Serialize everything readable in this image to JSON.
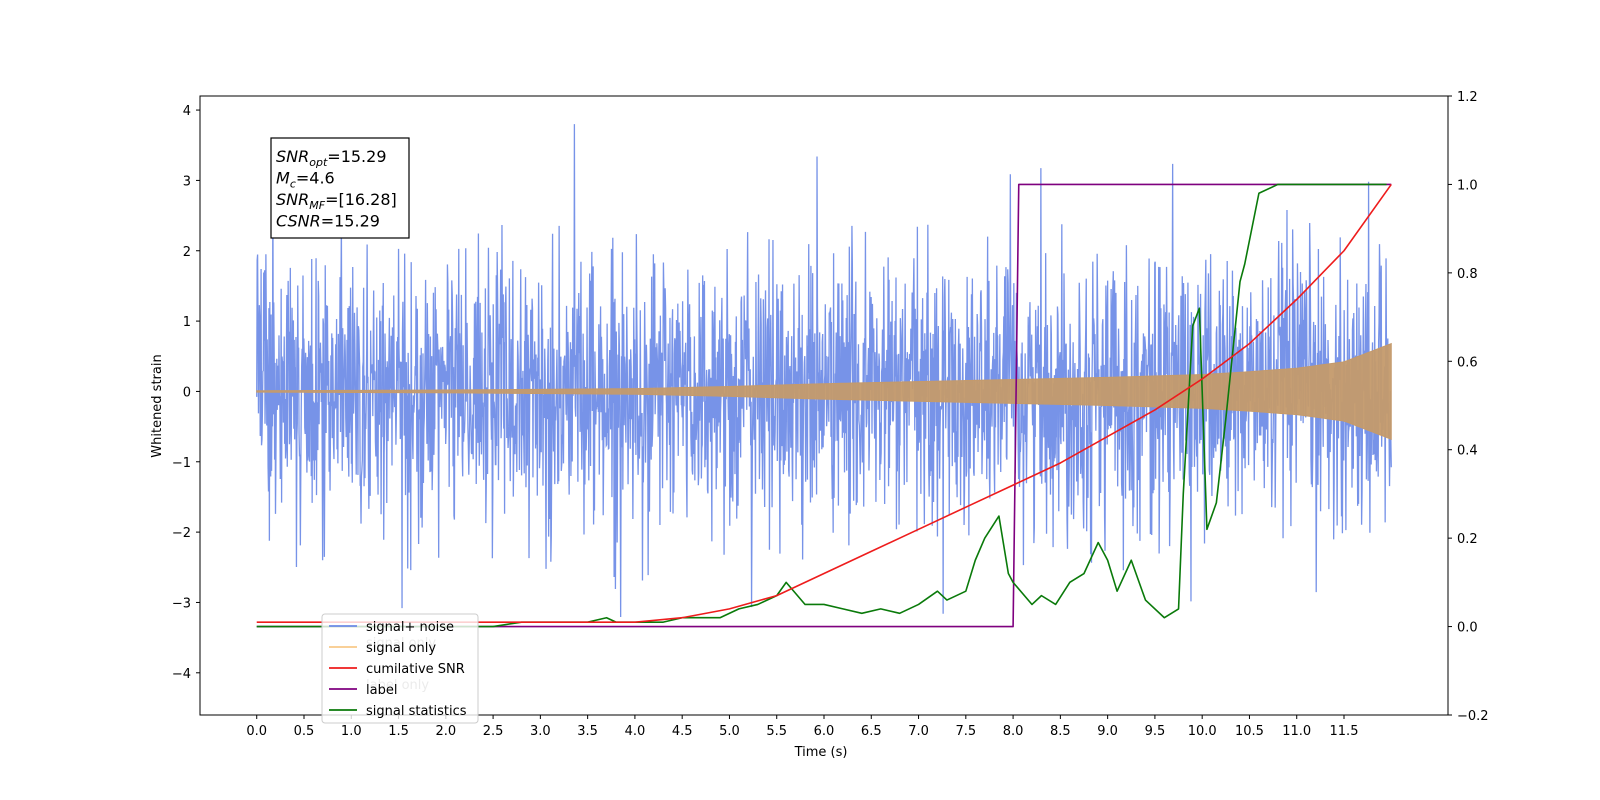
{
  "chart_data": {
    "type": "line",
    "xlabel": "Time (s)",
    "ylabel": "Whitened strain",
    "xlim": [
      -0.6,
      12.6
    ],
    "ylim": [
      -4.6,
      4.2
    ],
    "ylim_right": [
      -0.2,
      1.2
    ],
    "x_ticks": [
      "0.0",
      "0.5",
      "1.0",
      "1.5",
      "2.0",
      "2.5",
      "3.0",
      "3.5",
      "4.0",
      "4.5",
      "5.0",
      "5.5",
      "6.0",
      "6.5",
      "7.0",
      "7.5",
      "8.0",
      "8.5",
      "9.0",
      "9.5",
      "10.0",
      "10.5",
      "11.0",
      "11.5"
    ],
    "y_ticks_left": [
      "4",
      "3",
      "2",
      "1",
      "0",
      "−1",
      "−2",
      "−3",
      "−4"
    ],
    "y_ticks_right": [
      "1.2",
      "1.0",
      "0.8",
      "0.6",
      "0.4",
      "0.2",
      "0.0",
      "−0.2"
    ],
    "annotation": {
      "lines": [
        {
          "main": "SNR",
          "sub": "opt",
          "value": "=15.29"
        },
        {
          "main": "M",
          "sub": "c",
          "value": "=4.6"
        },
        {
          "main": "SNR",
          "sub": "MF",
          "value": "=[16.28]"
        },
        {
          "main": "CSNR",
          "sub": "",
          "value": "=15.29"
        }
      ]
    },
    "legend": {
      "position": "lower-left",
      "entries": [
        "signal+ noise",
        "signal only",
        "cumilative SNR",
        "label",
        "signal statistics"
      ],
      "ghost_labels": [
        "signal only",
        "label only"
      ]
    },
    "series": [
      {
        "name": "signal+ noise",
        "axis": "left",
        "color": "#6b8ae6",
        "kind": "noise",
        "x_range": [
          0.0,
          12.0
        ],
        "noise_std": 0.95,
        "noise_clip": 3.8
      },
      {
        "name": "signal only",
        "axis": "left",
        "color": "#c49a6c",
        "kind": "chirp_envelope",
        "x": [
          0.0,
          2.0,
          4.0,
          5.0,
          6.0,
          7.0,
          8.0,
          9.0,
          10.0,
          10.5,
          11.0,
          11.5,
          12.0
        ],
        "amplitude": [
          0.01,
          0.02,
          0.04,
          0.07,
          0.11,
          0.14,
          0.17,
          0.2,
          0.24,
          0.28,
          0.33,
          0.42,
          0.68
        ]
      },
      {
        "name": "cumilative SNR",
        "axis": "right",
        "color": "#ee1c1c",
        "x": [
          0.0,
          4.0,
          4.5,
          5.0,
          5.5,
          6.0,
          6.5,
          7.0,
          7.5,
          8.0,
          8.5,
          9.0,
          9.5,
          10.0,
          10.5,
          11.0,
          11.5,
          12.0
        ],
        "y": [
          0.01,
          0.01,
          0.02,
          0.04,
          0.07,
          0.12,
          0.17,
          0.22,
          0.27,
          0.32,
          0.37,
          0.43,
          0.49,
          0.56,
          0.64,
          0.74,
          0.85,
          1.0
        ]
      },
      {
        "name": "label",
        "axis": "right",
        "color": "#7f007f",
        "x": [
          0.0,
          8.0,
          8.06,
          12.0
        ],
        "y": [
          0.0,
          0.0,
          1.0,
          1.0
        ]
      },
      {
        "name": "signal statistics",
        "axis": "right",
        "color": "#0a7a0a",
        "x": [
          0.0,
          0.5,
          1.0,
          1.5,
          2.0,
          2.5,
          2.8,
          3.0,
          3.2,
          3.5,
          3.7,
          3.8,
          4.0,
          4.3,
          4.5,
          4.7,
          4.9,
          5.1,
          5.3,
          5.5,
          5.6,
          5.8,
          6.0,
          6.2,
          6.4,
          6.6,
          6.8,
          7.0,
          7.2,
          7.3,
          7.5,
          7.6,
          7.7,
          7.85,
          7.95,
          8.0,
          8.2,
          8.3,
          8.45,
          8.6,
          8.75,
          8.9,
          9.0,
          9.1,
          9.25,
          9.4,
          9.6,
          9.75,
          9.8,
          9.9,
          9.97,
          10.05,
          10.15,
          10.25,
          10.4,
          10.45,
          10.6,
          10.8,
          11.0,
          11.5,
          11.95
        ],
        "y": [
          0.0,
          0.0,
          0.0,
          0.0,
          0.0,
          0.0,
          0.01,
          0.01,
          0.01,
          0.01,
          0.02,
          0.01,
          0.01,
          0.01,
          0.02,
          0.02,
          0.02,
          0.04,
          0.05,
          0.07,
          0.1,
          0.05,
          0.05,
          0.04,
          0.03,
          0.04,
          0.03,
          0.05,
          0.08,
          0.06,
          0.08,
          0.15,
          0.2,
          0.25,
          0.12,
          0.1,
          0.05,
          0.07,
          0.05,
          0.1,
          0.12,
          0.19,
          0.15,
          0.08,
          0.15,
          0.06,
          0.02,
          0.04,
          0.3,
          0.68,
          0.72,
          0.22,
          0.28,
          0.47,
          0.78,
          0.82,
          0.98,
          1.0,
          1.0,
          1.0,
          1.0
        ]
      }
    ]
  }
}
